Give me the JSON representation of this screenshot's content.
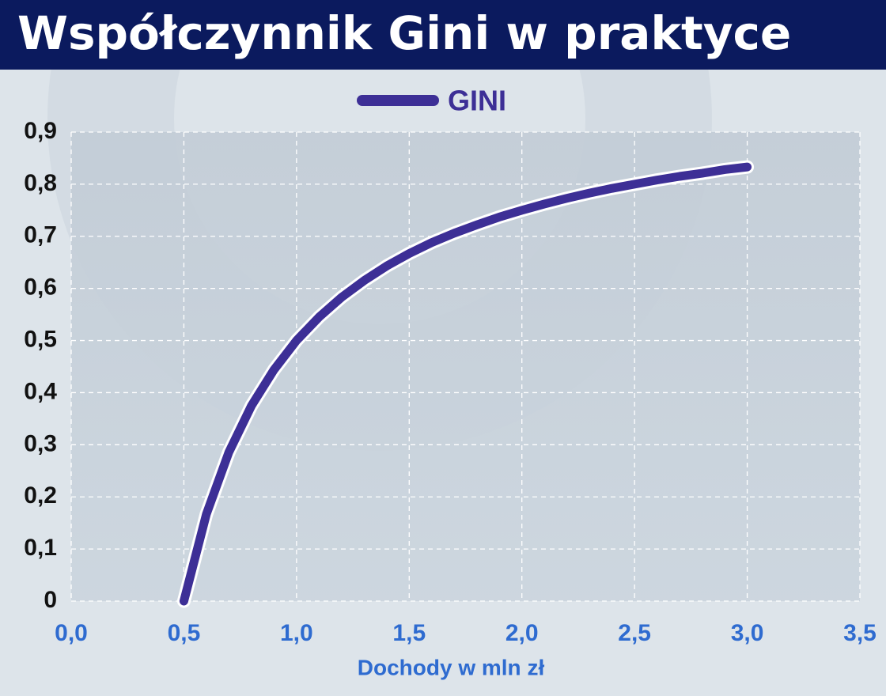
{
  "chart_data": {
    "type": "line",
    "title": "Współczynnik Gini w praktyce",
    "x_label": "Dochody w mln zł",
    "x": [
      0.5,
      0.6,
      0.7,
      0.8,
      0.9,
      1.0,
      1.1,
      1.2,
      1.3,
      1.4,
      1.5,
      1.6,
      1.7,
      1.8,
      1.9,
      2.0,
      2.1,
      2.2,
      2.3,
      2.4,
      2.5,
      2.6,
      2.7,
      2.8,
      2.9,
      3.0
    ],
    "series": [
      {
        "name": "GINI",
        "color": "#3d2f96",
        "values": [
          0,
          0.167,
          0.286,
          0.375,
          0.444,
          0.5,
          0.545,
          0.583,
          0.615,
          0.643,
          0.667,
          0.688,
          0.706,
          0.722,
          0.737,
          0.75,
          0.762,
          0.773,
          0.783,
          0.792,
          0.8,
          0.808,
          0.815,
          0.821,
          0.828,
          0.833
        ]
      }
    ],
    "xlim": [
      0,
      3.5
    ],
    "xticks": [
      {
        "value": 0,
        "label": "0,0"
      },
      {
        "value": 0.5,
        "label": "0,5"
      },
      {
        "value": 1,
        "label": "1,0"
      },
      {
        "value": 1.5,
        "label": "1,5"
      },
      {
        "value": 2,
        "label": "2,0"
      },
      {
        "value": 2.5,
        "label": "2,5"
      },
      {
        "value": 3,
        "label": "3,0"
      },
      {
        "value": 3.5,
        "label": "3,5"
      }
    ],
    "ylim": [
      0,
      0.9
    ],
    "yticks": [
      0,
      {
        "value": 0.1,
        "label": "0,1"
      },
      {
        "value": 0.2,
        "label": "0,2"
      },
      {
        "value": 0.3,
        "label": "0,3"
      },
      {
        "value": 0.4,
        "label": "0,4"
      },
      {
        "value": 0.5,
        "label": "0,5"
      },
      {
        "value": 0.6,
        "label": "0,6"
      },
      {
        "value": 0.7,
        "label": "0,7"
      },
      {
        "value": 0.8,
        "label": "0,8"
      },
      {
        "value": 0.9,
        "label": "0,9"
      }
    ],
    "grid": true
  }
}
